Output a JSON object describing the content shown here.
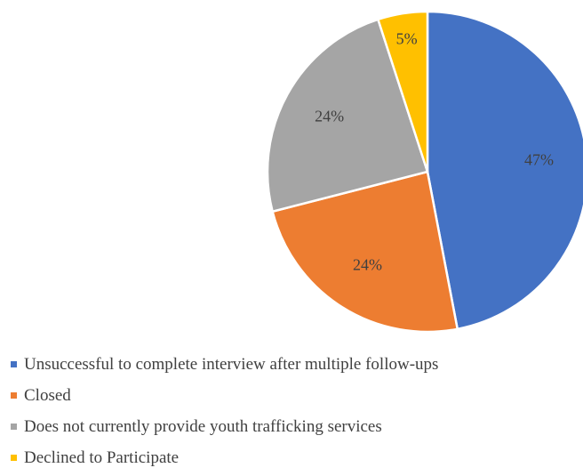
{
  "chart_data": {
    "type": "pie",
    "title": "",
    "slices": [
      {
        "label": "Unsuccessful to complete interview after multiple follow-ups",
        "value": 47,
        "display": "47%",
        "color": "#4472C4"
      },
      {
        "label": "Closed",
        "value": 24,
        "display": "24%",
        "color": "#ED7D31"
      },
      {
        "label": "Does not currently provide youth trafficking services",
        "value": 24,
        "display": "24%",
        "color": "#A5A5A5"
      },
      {
        "label": "Declined to Participate",
        "value": 5,
        "display": "5%",
        "color": "#FFC000"
      }
    ],
    "start_angle_deg": 0,
    "direction": "clockwise",
    "legend_position": "bottom-left"
  }
}
